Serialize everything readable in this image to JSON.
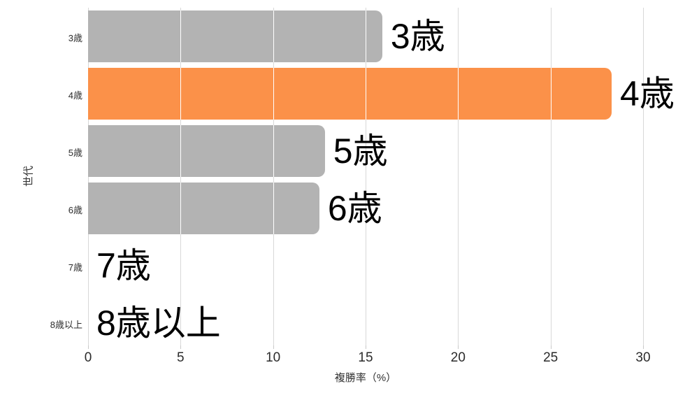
{
  "chart_data": {
    "type": "bar",
    "orientation": "horizontal",
    "title": "",
    "xlabel": "複勝率（%）",
    "ylabel": "世代",
    "categories": [
      "3歳",
      "4歳",
      "5歳",
      "6歳",
      "7歳",
      "8歳以上"
    ],
    "values": [
      15.9,
      28.3,
      12.8,
      12.5,
      0,
      0
    ],
    "bar_labels": [
      "3歳",
      "4歳",
      "5歳",
      "6歳",
      "7歳",
      "8歳以上"
    ],
    "x_ticks": [
      0,
      5,
      10,
      15,
      20,
      25,
      30
    ],
    "xlim": [
      0,
      30
    ],
    "grid": true,
    "legend": "none",
    "highlight_index": 1,
    "colors": {
      "bar_default": "#b3b3b3",
      "bar_highlight": "#fb9149",
      "gridline": "#d8d8d8",
      "text": "#000000"
    }
  }
}
